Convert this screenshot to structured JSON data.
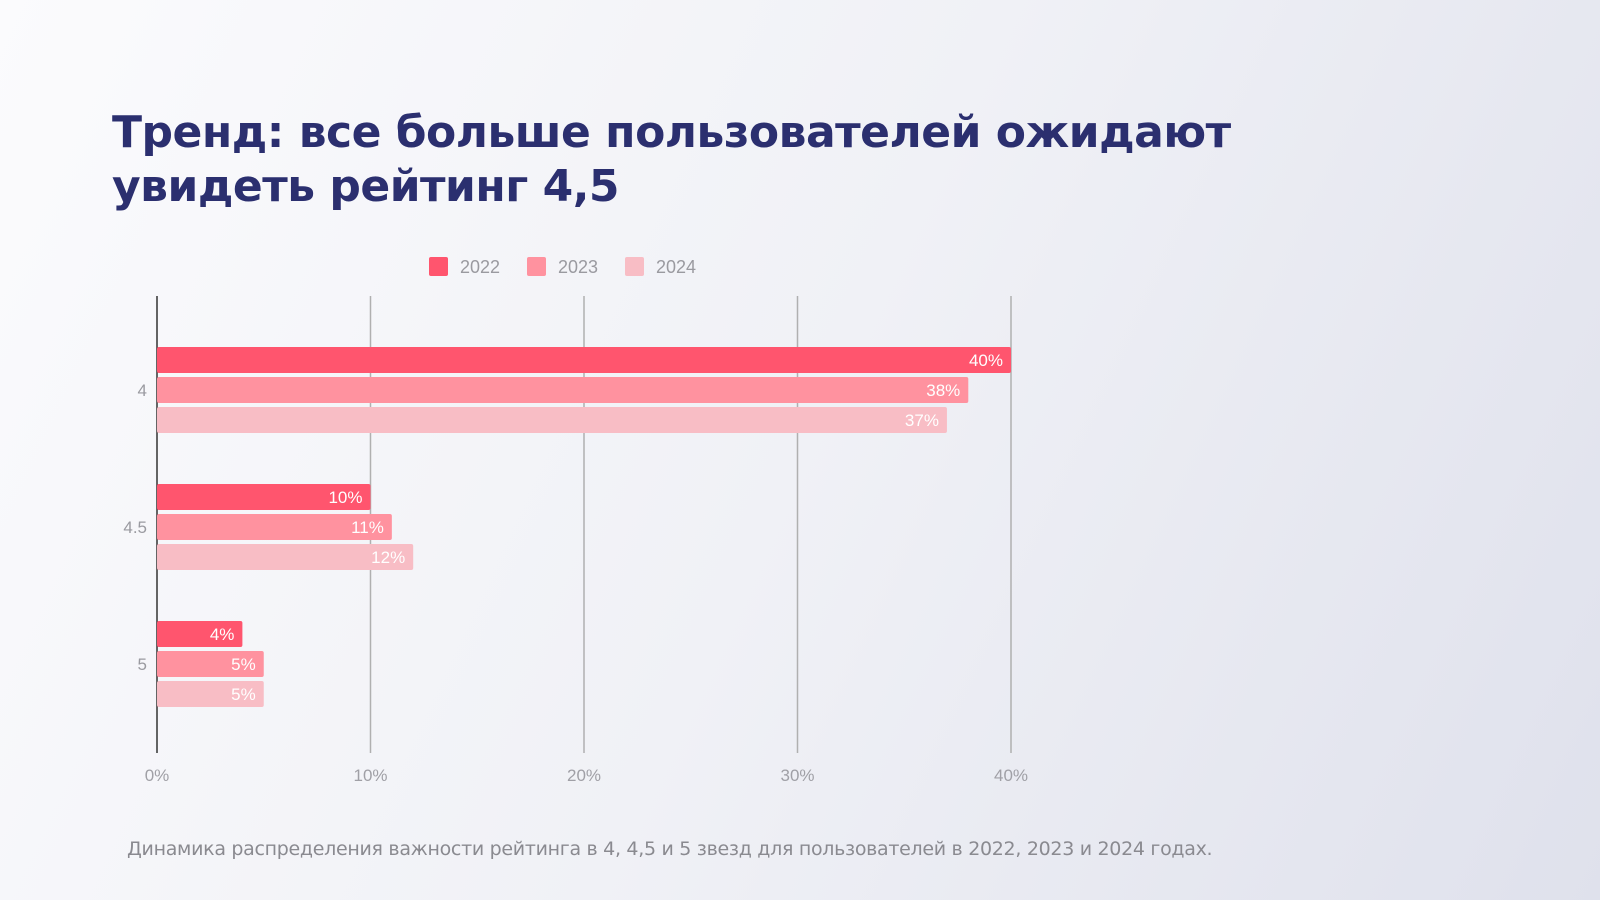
{
  "title_lines": [
    "Тренд: все больше пользователей ожидают",
    "увидеть рейтинг 4,5"
  ],
  "caption": "Динамика распределения важности рейтинга в 4, 4,5 и 5 звезд для пользователей в 2022, 2023 и 2024 годах.",
  "chart_data": {
    "type": "bar",
    "orientation": "horizontal",
    "categories": [
      "4",
      "4.5",
      "5"
    ],
    "series": [
      {
        "name": "2022",
        "values": [
          40,
          10,
          4
        ],
        "color": "#ff556e"
      },
      {
        "name": "2023",
        "values": [
          38,
          11,
          5
        ],
        "color": "#ff929f"
      },
      {
        "name": "2024",
        "values": [
          37,
          12,
          5
        ],
        "color": "#f8bdc5"
      }
    ],
    "data_labels": [
      [
        "40%",
        "10%",
        "4%"
      ],
      [
        "38%",
        "11%",
        "5%"
      ],
      [
        "37%",
        "12%",
        "5%"
      ]
    ],
    "x_ticks": [
      "0%",
      "10%",
      "20%",
      "30%",
      "40%"
    ],
    "x_tick_values": [
      0,
      10,
      20,
      30,
      40
    ],
    "xlim": [
      0,
      40
    ],
    "grid": true,
    "legend_position": "top"
  }
}
